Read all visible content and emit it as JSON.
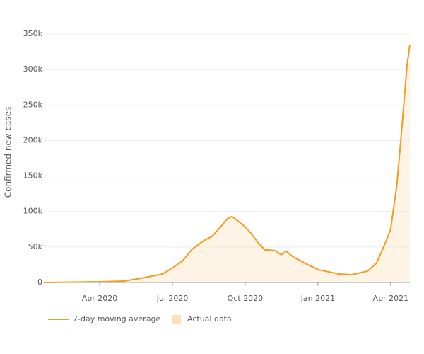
{
  "chart_data": {
    "type": "line",
    "y_label": "Confirmed new cases",
    "x": [
      2020.058,
      2020.25,
      2020.333,
      2020.393,
      2020.466,
      2020.498,
      2020.534,
      2020.568,
      2020.612,
      2020.636,
      2020.665,
      2020.689,
      2020.704,
      2020.721,
      2020.745,
      2020.769,
      2020.796,
      2020.818,
      2020.854,
      2020.874,
      2020.891,
      2020.915,
      2020.971,
      2021.002,
      2021.036,
      2021.073,
      2021.117,
      2021.17,
      2021.201,
      2021.231,
      2021.25,
      2021.272,
      2021.291,
      2021.306,
      2021.316
    ],
    "series": [
      {
        "name": "7-day moving average",
        "color": "#f39c1f",
        "type": "line",
        "values": [
          0,
          1000,
          2000,
          6000,
          12000,
          20000,
          30000,
          47000,
          60000,
          65000,
          78000,
          90000,
          93000,
          88000,
          80000,
          70000,
          55000,
          46000,
          45000,
          39000,
          44000,
          36000,
          24000,
          18000,
          15000,
          12000,
          11000,
          16000,
          27000,
          55000,
          75000,
          140000,
          230000,
          305000,
          335000
        ]
      },
      {
        "name": "Actual data",
        "color": "#fde0b8",
        "type": "area",
        "values": [
          0,
          1000,
          2000,
          6000,
          12000,
          20000,
          30000,
          47000,
          60000,
          65000,
          78000,
          90000,
          93000,
          88000,
          80000,
          70000,
          55000,
          46000,
          45000,
          39000,
          44000,
          36000,
          24000,
          18000,
          15000,
          12000,
          11000,
          16000,
          27000,
          55000,
          75000,
          140000,
          230000,
          305000,
          335000
        ]
      }
    ],
    "xlim": [
      2020.058,
      2021.316
    ],
    "xticks": [
      {
        "value": 2020.25,
        "label": "Apr 2020"
      },
      {
        "value": 2020.5,
        "label": "Jul 2020"
      },
      {
        "value": 2020.75,
        "label": "Oct 2020"
      },
      {
        "value": 2021.0,
        "label": "Jan 2021"
      },
      {
        "value": 2021.25,
        "label": "Apr 2021"
      }
    ],
    "ylim": [
      0,
      350000
    ],
    "yticks": [
      0,
      {
        "value": 50000,
        "label": "50k"
      },
      {
        "value": 100000,
        "label": "100k"
      },
      {
        "value": 150000,
        "label": "150k"
      },
      {
        "value": 200000,
        "label": "200k"
      },
      {
        "value": 250000,
        "label": "250k"
      },
      {
        "value": 300000,
        "label": "300k"
      },
      {
        "value": 350000,
        "label": "350k"
      }
    ],
    "grid": true
  }
}
